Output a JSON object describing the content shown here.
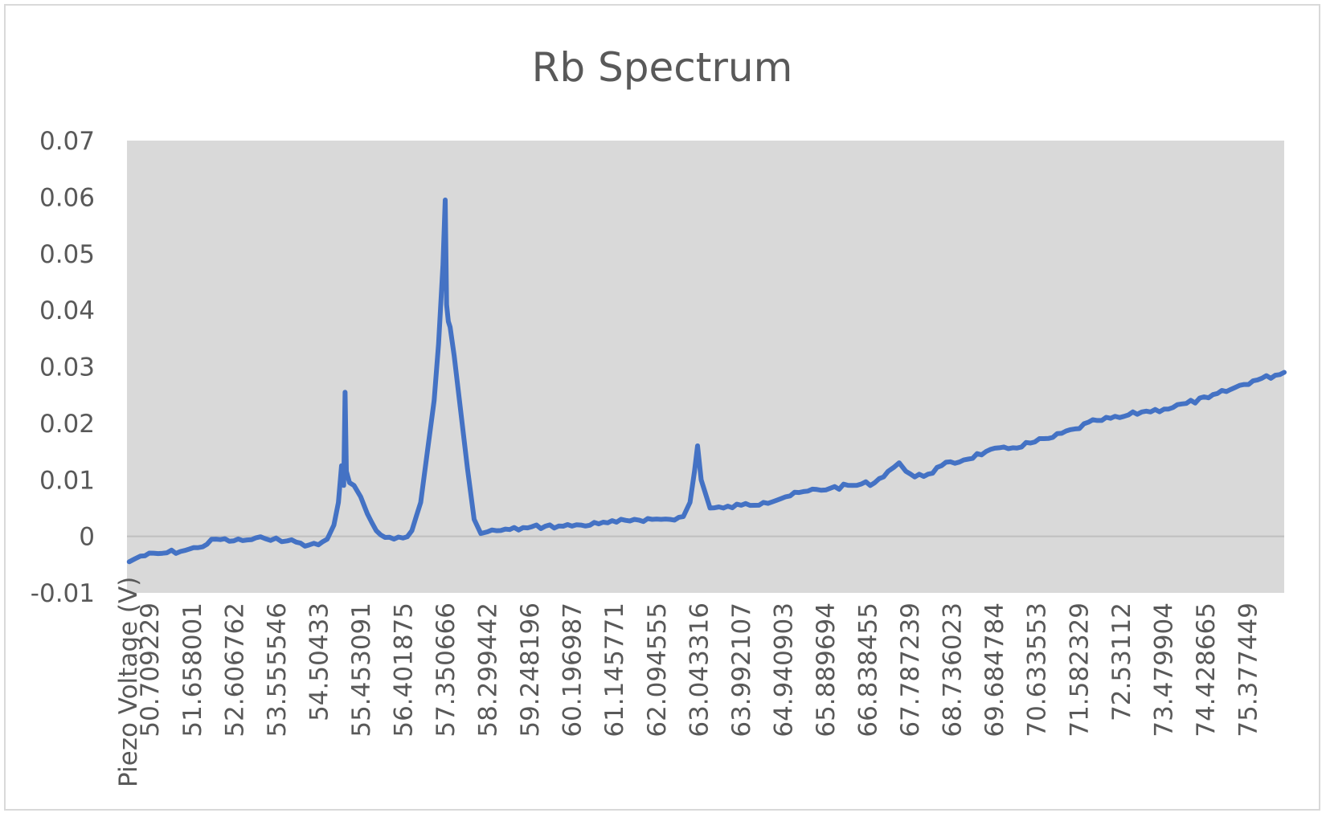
{
  "chart_data": {
    "type": "line",
    "title": "Rb Spectrum",
    "xlabel": "Piezo Voltage (V)",
    "ylabel": "",
    "ylim": [
      -0.01,
      0.07
    ],
    "yticks": [
      "-0.01",
      "0",
      "0.01",
      "0.02",
      "0.03",
      "0.04",
      "0.05",
      "0.06",
      "0.07"
    ],
    "xlim": [
      50.2,
      76.2
    ],
    "xticks": [
      "50.709229",
      "51.658001",
      "52.606762",
      "53.555546",
      "54.50433",
      "55.453091",
      "56.401875",
      "57.350666",
      "58.299442",
      "59.248196",
      "60.196987",
      "61.145771",
      "62.094555",
      "63.043316",
      "63.992107",
      "64.940903",
      "65.889694",
      "66.838455",
      "67.787239",
      "68.736023",
      "69.684784",
      "70.633553",
      "71.582329",
      "72.53112",
      "73.479904",
      "74.428665",
      "75.377449"
    ],
    "grid": false,
    "legend": "none",
    "plot_background": "#d9d9d9",
    "series": [
      {
        "color": "#4472c4",
        "x": [
          50.25,
          50.5,
          51.0,
          51.5,
          51.8,
          52.2,
          52.6,
          53.0,
          53.3,
          53.55,
          53.8,
          54.1,
          54.3,
          54.5,
          54.7,
          54.85,
          54.95,
          55.02,
          55.07,
          55.1,
          55.13,
          55.2,
          55.3,
          55.45,
          55.6,
          55.8,
          56.0,
          56.2,
          56.4,
          56.6,
          56.8,
          56.95,
          57.1,
          57.2,
          57.3,
          57.35,
          57.38,
          57.42,
          57.46,
          57.55,
          57.7,
          57.85,
          58.0,
          58.15,
          58.3,
          58.5,
          58.8,
          59.2,
          59.6,
          60.0,
          60.4,
          60.8,
          61.2,
          61.6,
          62.0,
          62.4,
          62.7,
          62.85,
          62.95,
          63.02,
          63.1,
          63.2,
          63.3,
          63.6,
          64.0,
          64.5,
          65.0,
          65.5,
          66.0,
          66.5,
          67.0,
          67.3,
          67.55,
          67.7,
          67.9,
          68.2,
          68.5,
          69.0,
          69.5,
          70.0,
          70.5,
          71.0,
          71.5,
          72.0,
          72.5,
          73.0,
          73.5,
          74.0,
          74.5,
          75.0,
          75.5,
          76.0,
          76.2
        ],
        "y": [
          -0.0045,
          -0.0035,
          -0.003,
          -0.0025,
          -0.002,
          -0.0005,
          -0.0008,
          -0.0006,
          -0.0004,
          -0.0003,
          -0.0008,
          -0.0012,
          -0.0015,
          -0.0015,
          -0.0005,
          0.002,
          0.006,
          0.0125,
          0.009,
          0.0255,
          0.0115,
          0.0095,
          0.009,
          0.007,
          0.004,
          0.001,
          -0.0002,
          -0.0005,
          -0.0003,
          0.001,
          0.006,
          0.015,
          0.024,
          0.034,
          0.048,
          0.0595,
          0.041,
          0.038,
          0.037,
          0.032,
          0.022,
          0.012,
          0.003,
          0.0005,
          0.0008,
          0.001,
          0.0012,
          0.0015,
          0.0018,
          0.0018,
          0.002,
          0.0022,
          0.0025,
          0.003,
          0.003,
          0.003,
          0.0035,
          0.006,
          0.0115,
          0.016,
          0.01,
          0.0075,
          0.005,
          0.005,
          0.0055,
          0.006,
          0.007,
          0.008,
          0.0085,
          0.009,
          0.0095,
          0.0115,
          0.013,
          0.0115,
          0.0105,
          0.011,
          0.0125,
          0.0135,
          0.015,
          0.0155,
          0.0165,
          0.0175,
          0.019,
          0.0205,
          0.021,
          0.022,
          0.0225,
          0.0235,
          0.0245,
          0.026,
          0.0275,
          0.0285,
          0.029
        ]
      }
    ]
  }
}
